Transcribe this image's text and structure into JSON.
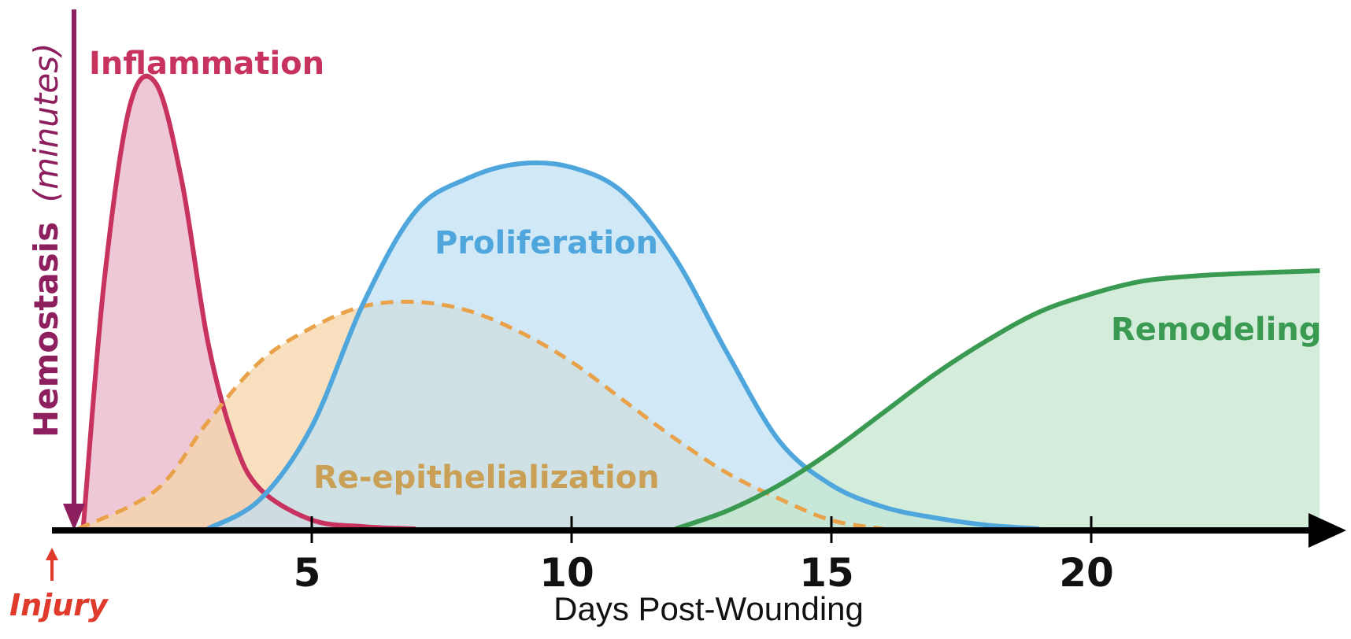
{
  "title": "",
  "xlabel": "Days Post-Wounding",
  "ticks": [
    "5",
    "10",
    "15",
    "20"
  ],
  "hemostasis": {
    "label": "Hemostasis",
    "note": "(minutes)",
    "color": "#8e1f5e"
  },
  "injury": {
    "label": "Injury",
    "color": "#e03a2c"
  },
  "phases": [
    {
      "key": "inflammation",
      "label": "Inflammation",
      "color": "#c7325f",
      "fill": "#e8b3c8"
    },
    {
      "key": "proliferation",
      "label": "Proliferation",
      "color": "#4ea6dc",
      "fill": "#bfe0f4"
    },
    {
      "key": "reepi",
      "label": "Re-epithelialization",
      "color": "#e9a24a",
      "fill": "#f5d4a6",
      "text_color": "#c9a055"
    },
    {
      "key": "remodeling",
      "label": "Remodeling",
      "color": "#3a9a52",
      "fill": "#c3e6cc"
    }
  ],
  "chart_data": {
    "type": "area",
    "xlabel": "Days Post-Wounding",
    "xlim": [
      0,
      24.5
    ],
    "x_ticks": [
      5,
      10,
      15,
      20
    ],
    "series": [
      {
        "name": "Inflammation",
        "x": [
          0.6,
          1,
          1.5,
          2,
          2.5,
          3,
          3.5,
          4,
          5,
          6,
          7
        ],
        "y": [
          0,
          0.55,
          0.95,
          1.0,
          0.78,
          0.42,
          0.2,
          0.09,
          0.02,
          0.005,
          0
        ]
      },
      {
        "name": "Re-epithelialization",
        "x": [
          0.5,
          2,
          3,
          4,
          5,
          6,
          7,
          8,
          9,
          10,
          11,
          12,
          13,
          14,
          15,
          16
        ],
        "y": [
          0,
          0.09,
          0.25,
          0.39,
          0.47,
          0.52,
          0.53,
          0.51,
          0.46,
          0.39,
          0.3,
          0.21,
          0.13,
          0.07,
          0.02,
          0
        ]
      },
      {
        "name": "Proliferation",
        "x": [
          3,
          4,
          5,
          6,
          7,
          8,
          9,
          10,
          11,
          12,
          13,
          14,
          15,
          16,
          17,
          18,
          19
        ],
        "y": [
          0,
          0.08,
          0.28,
          0.62,
          0.87,
          0.96,
          1.0,
          0.99,
          0.92,
          0.74,
          0.48,
          0.24,
          0.12,
          0.06,
          0.03,
          0.01,
          0
        ]
      },
      {
        "name": "Remodeling",
        "x": [
          12,
          13,
          14,
          15,
          16,
          17,
          18,
          19,
          20,
          21,
          22,
          23,
          24.4
        ],
        "y": [
          0,
          0.07,
          0.17,
          0.3,
          0.45,
          0.6,
          0.73,
          0.84,
          0.91,
          0.96,
          0.98,
          0.99,
          1.0
        ]
      }
    ]
  }
}
